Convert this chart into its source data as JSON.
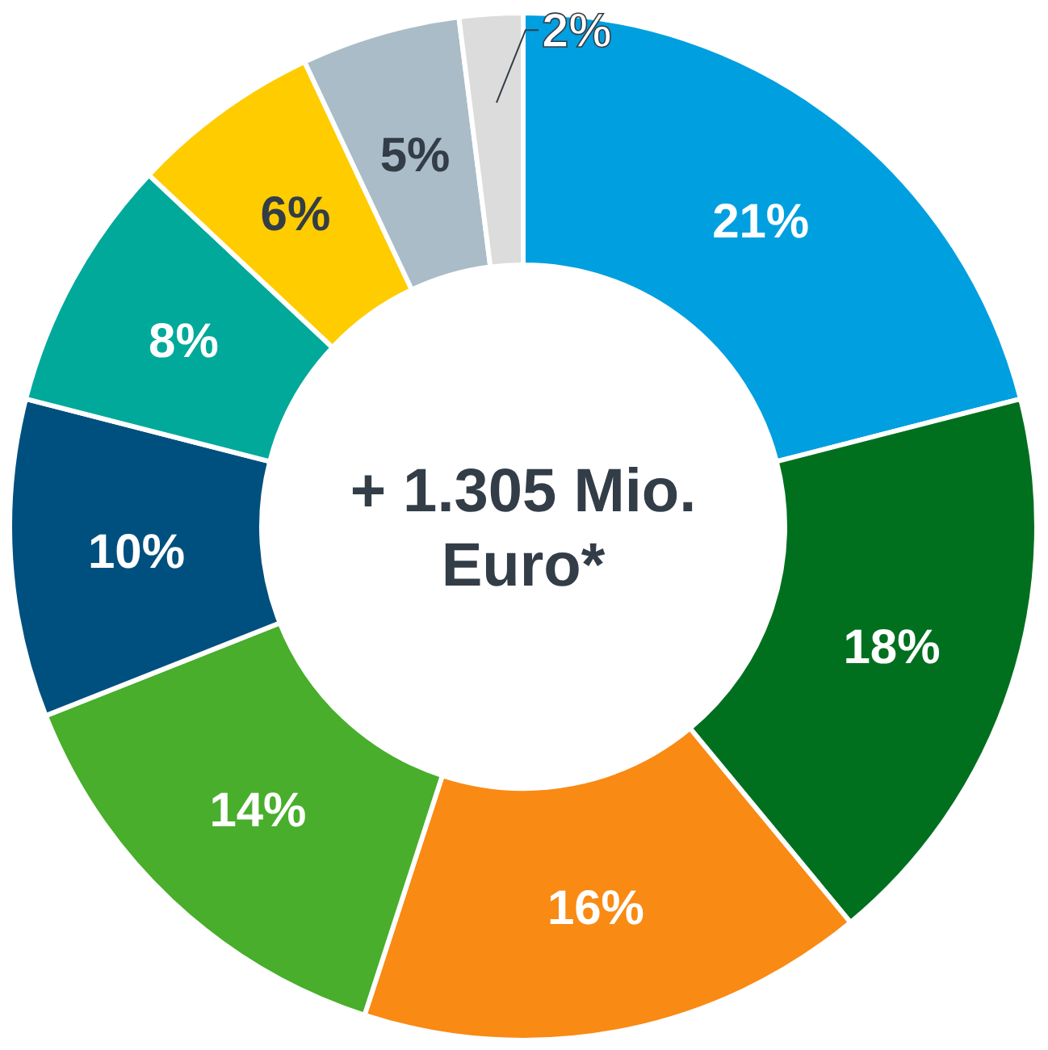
{
  "chart_data": {
    "type": "donut",
    "title": "+ 1.305 Mio. Euro*",
    "categories": [
      null,
      null,
      null,
      null,
      null,
      null,
      null,
      null,
      null
    ],
    "values": [
      21,
      18,
      16,
      14,
      10,
      8,
      6,
      5,
      2
    ],
    "value_labels": [
      "21%",
      "18%",
      "16%",
      "14%",
      "10%",
      "8%",
      "6%",
      "5%",
      "2%"
    ],
    "colors": [
      "#009fe0",
      "#00701f",
      "#f98a14",
      "#48ae2c",
      "#00507f",
      "#00a99a",
      "#ffcc00",
      "#a9bcc8",
      "#dcdcdc"
    ]
  }
}
